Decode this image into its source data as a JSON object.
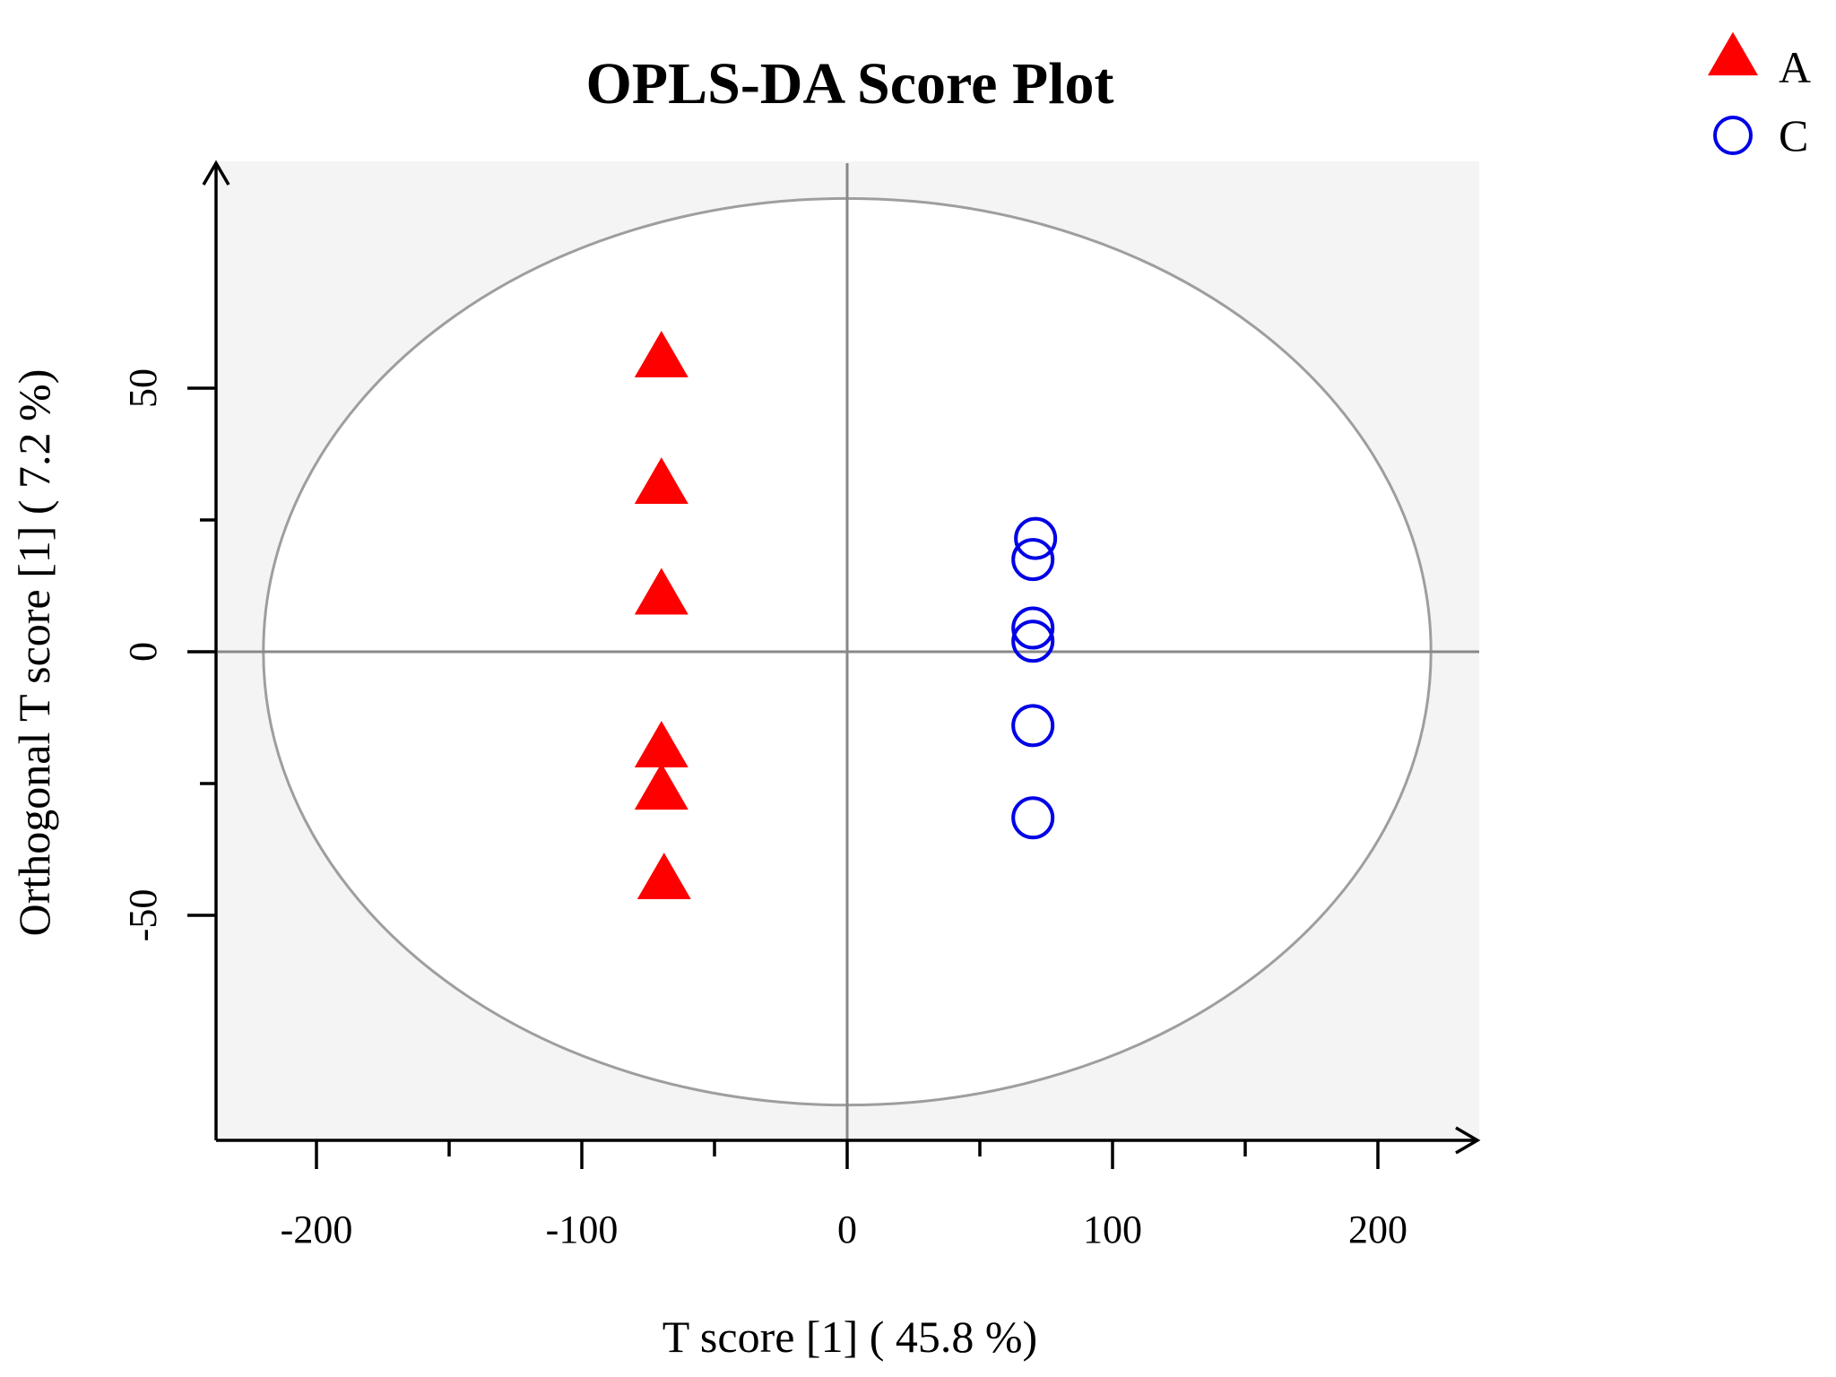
{
  "chart_data": {
    "type": "scatter",
    "title": "OPLS-DA Score Plot",
    "xlabel": "T score [1] ( 45.8 %)",
    "ylabel": "Orthogonal T score [1] ( 7.2 %)",
    "xlim": [
      -240,
      240
    ],
    "ylim": [
      -93,
      93
    ],
    "xticks": [
      -200,
      -100,
      0,
      100,
      200
    ],
    "xtick_labels": [
      "-200",
      "-100",
      "0",
      "100",
      "200"
    ],
    "x_minor_ticks": [
      -150,
      -50,
      50,
      150
    ],
    "yticks": [
      -50,
      0,
      50
    ],
    "ytick_labels": [
      "-50",
      "0",
      "50"
    ],
    "y_minor_ticks": [
      -25,
      25
    ],
    "ellipse": {
      "cx": 0,
      "cy": 0,
      "rx": 220,
      "ry": 86
    },
    "grid": false,
    "legend_position": "top-right",
    "series": [
      {
        "name": "A",
        "marker": "filled-triangle",
        "color": "#ff0000",
        "points": [
          {
            "x": -70,
            "y": 55
          },
          {
            "x": -70,
            "y": 31
          },
          {
            "x": -70,
            "y": 10
          },
          {
            "x": -70,
            "y": -19
          },
          {
            "x": -70,
            "y": -27
          },
          {
            "x": -69,
            "y": -44
          }
        ]
      },
      {
        "name": "C",
        "marker": "open-circle",
        "color": "#0000e6",
        "points": [
          {
            "x": 71,
            "y": 21.5
          },
          {
            "x": 70,
            "y": 17.5
          },
          {
            "x": 70,
            "y": 4.5
          },
          {
            "x": 70,
            "y": 2
          },
          {
            "x": 70,
            "y": -14
          },
          {
            "x": 70,
            "y": -31.5
          }
        ]
      }
    ]
  }
}
